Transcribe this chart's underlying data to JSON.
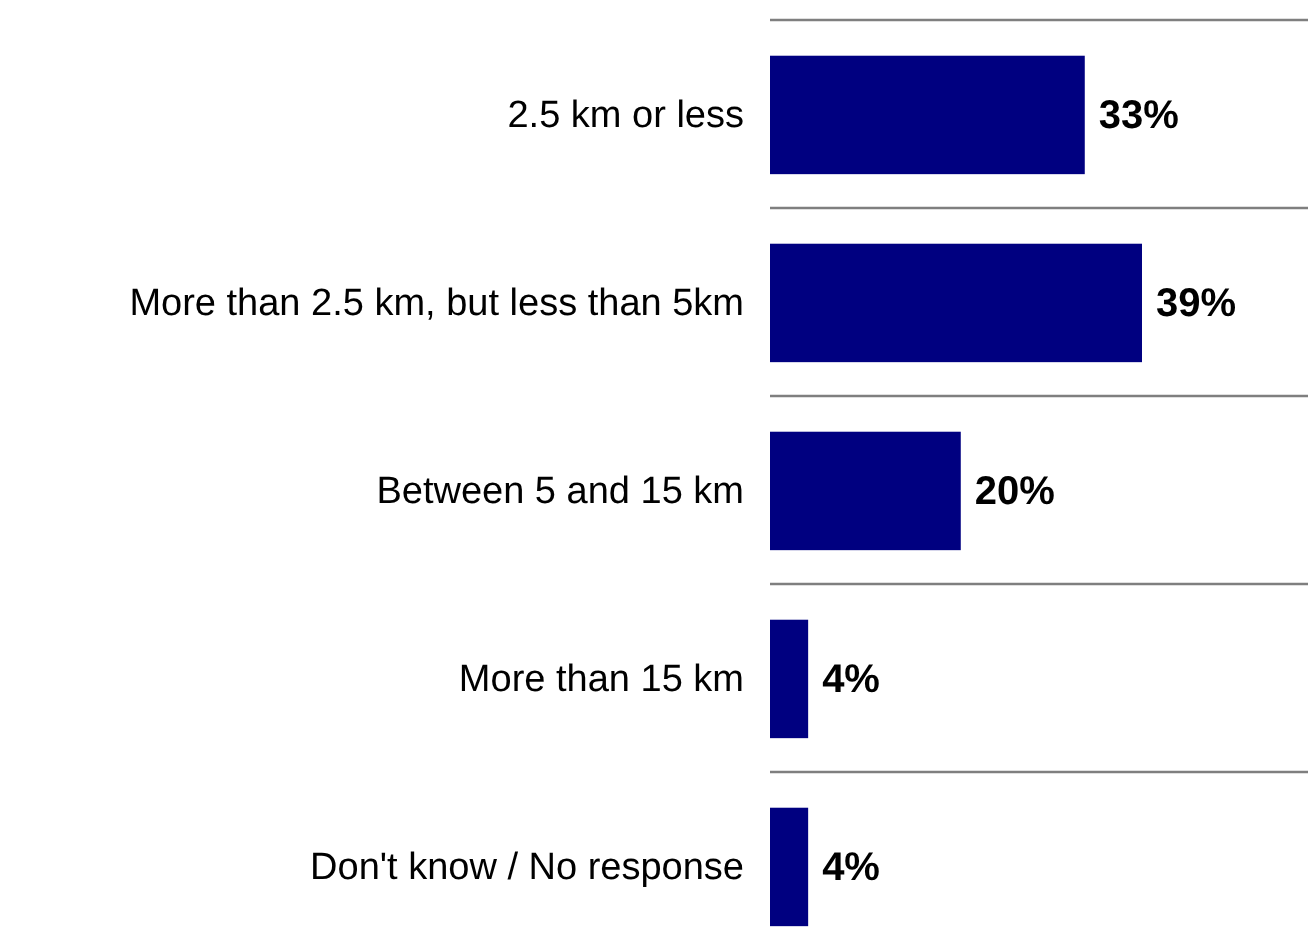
{
  "chart_data": {
    "type": "bar",
    "orientation": "horizontal",
    "categories": [
      "2.5 km or less",
      "More than 2.5 km, but less than 5km",
      "Between 5 and 15 km",
      "More than 15 km",
      "Don't know / No response"
    ],
    "values": [
      33,
      39,
      20,
      4,
      4
    ],
    "value_labels": [
      "33%",
      "39%",
      "20%",
      "4%",
      "4%"
    ],
    "color": "#000080",
    "grid": "y"
  }
}
